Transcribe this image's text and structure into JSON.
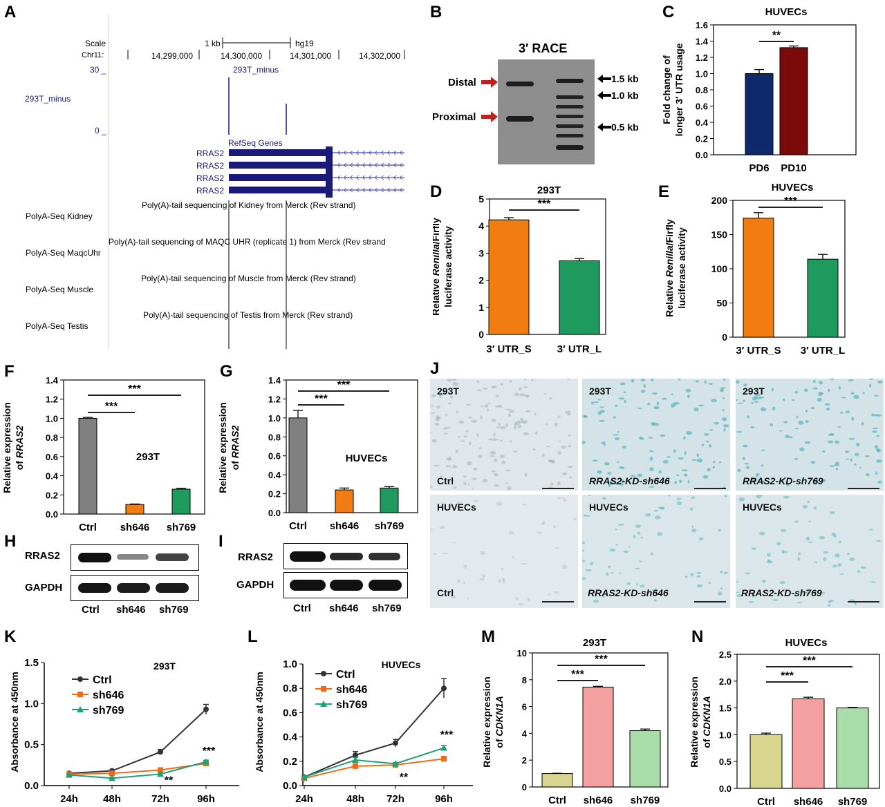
{
  "panels": {
    "A": "A",
    "B": "B",
    "C": "C",
    "D": "D",
    "E": "E",
    "F": "F",
    "G": "G",
    "H": "H",
    "I": "I",
    "J": "J",
    "K": "K",
    "L": "L",
    "M": "M",
    "N": "N"
  },
  "genome_browser": {
    "scale_label": "Scale",
    "scale_value": "1 kb",
    "assembly": "hg19",
    "chr_label": "Chr11:",
    "positions": [
      "14,299,000",
      "14,300,000",
      "14,301,000",
      "14,302,000"
    ],
    "track_max": "30 _",
    "track_min": "0 _",
    "track_name": "293T_minus",
    "track_title": "293T_minus",
    "refseq_title": "RefSeq Genes",
    "genes": [
      "RRAS2",
      "RRAS2",
      "RRAS2",
      "RRAS2"
    ],
    "polya_tracks": [
      {
        "name": "PolyA-Seq Kidney",
        "desc": "Poly(A)-tail sequencing of Kidney from Merck (Rev strand)"
      },
      {
        "name": "PolyA-Seq MaqcUhr",
        "desc": "Poly(A)-tail sequencing of MAQC UHR (replicate 1) from Merck (Rev strand"
      },
      {
        "name": "PolyA-Seq Muscle",
        "desc": "Poly(A)-tail sequencing of Muscle from Merck (Rev strand)"
      },
      {
        "name": "PolyA-Seq Testis",
        "desc": "Poly(A)-tail sequencing of Testis from Merck (Rev strand)"
      }
    ]
  },
  "race": {
    "title": "3′ RACE",
    "distal": "Distal",
    "proximal": "Proximal",
    "markers": [
      "1.5 kb",
      "1.0 kb",
      "0.5 kb"
    ],
    "arrow_color": "#c0201e"
  },
  "blots": {
    "H": {
      "rows": [
        "RRAS2",
        "GAPDH"
      ],
      "lanes": [
        "Ctrl",
        "sh646",
        "sh769"
      ],
      "rras2_intensity": [
        1.0,
        0.25,
        0.55
      ],
      "gapdh_intensity": [
        0.95,
        0.9,
        0.9
      ]
    },
    "I": {
      "rows": [
        "RRAS2",
        "GAPDH"
      ],
      "lanes": [
        "Ctrl",
        "sh646",
        "sh769"
      ],
      "rras2_intensity": [
        1.0,
        0.7,
        0.6
      ],
      "gapdh_intensity": [
        0.95,
        0.95,
        0.95
      ]
    }
  },
  "microscopy": {
    "top_cell": "293T",
    "bottom_cell": "HUVECs",
    "conditions": [
      "Ctrl",
      "RRAS2-KD-sh646",
      "RRAS2-KD-sh769"
    ]
  },
  "colors": {
    "navy": "#0f2a6b",
    "darkred": "#7d0a0a",
    "orange": "#f07c12",
    "green": "#1f9a5e",
    "gray": "#808080",
    "pink": "#f4a0a0",
    "lightgreen": "#a8dca8",
    "khaki": "#d8d68e",
    "line_ctrl": "#333333",
    "line_sh646": "#f06a14",
    "line_sh769": "#1ea07a"
  },
  "chart_data": [
    {
      "id": "C",
      "type": "bar",
      "title": "HUVECs",
      "ylabel": "Fold change of longer 3′ UTR usage",
      "categories": [
        "PD6",
        "PD10"
      ],
      "values": [
        1.0,
        1.32
      ],
      "errors": [
        0.05,
        0.02
      ],
      "ylim": [
        0,
        1.6
      ],
      "yticks": [
        "0.0",
        "0.2",
        "0.4",
        "0.6",
        "0.8",
        "1.0",
        "1.2",
        "1.4",
        "1.6"
      ],
      "bar_colors": [
        "#0f2a6b",
        "#7d0a0a"
      ],
      "sig": [
        {
          "from": 0,
          "to": 1,
          "label": "**"
        }
      ]
    },
    {
      "id": "D",
      "type": "bar",
      "title": "293T",
      "ylabel": "Relative Renilla/Firfly luciferase activity",
      "categories": [
        "3′ UTR_S",
        "3′ UTR_L"
      ],
      "values": [
        4.23,
        2.72
      ],
      "errors": [
        0.08,
        0.08
      ],
      "ylim": [
        0,
        5
      ],
      "yticks": [
        "0",
        "1",
        "2",
        "3",
        "4",
        "5"
      ],
      "bar_colors": [
        "#f07c12",
        "#1f9a5e"
      ],
      "sig": [
        {
          "from": 0,
          "to": 1,
          "label": "***"
        }
      ]
    },
    {
      "id": "E",
      "type": "bar",
      "title": "HUVECs",
      "ylabel": "Relative Renilla/Firfly luciferase activity",
      "categories": [
        "3′ UTR_S",
        "3′ UTR_L"
      ],
      "values": [
        174,
        114
      ],
      "errors": [
        8,
        7
      ],
      "ylim": [
        0,
        200
      ],
      "yticks": [
        "0",
        "50",
        "100",
        "150",
        "200"
      ],
      "bar_colors": [
        "#f07c12",
        "#1f9a5e"
      ],
      "sig": [
        {
          "from": 0,
          "to": 1,
          "label": "***"
        }
      ]
    },
    {
      "id": "F",
      "type": "bar",
      "title": "293T",
      "ylabel": "Relative expression of RRAS2",
      "categories": [
        "Ctrl",
        "sh646",
        "sh769"
      ],
      "values": [
        1.0,
        0.1,
        0.26
      ],
      "errors": [
        0.01,
        0.005,
        0.01
      ],
      "ylim": [
        0,
        1.4
      ],
      "yticks": [
        "0.0",
        "0.2",
        "0.4",
        "0.6",
        "0.8",
        "1.0",
        "1.2",
        "1.4"
      ],
      "bar_colors": [
        "#808080",
        "#f07c12",
        "#1f9a5e"
      ],
      "sig": [
        {
          "from": 0,
          "to": 1,
          "label": "***"
        },
        {
          "from": 0,
          "to": 2,
          "label": "***"
        }
      ]
    },
    {
      "id": "G",
      "type": "bar",
      "title": "HUVECs",
      "ylabel": "Relative expression of RRAS2",
      "categories": [
        "Ctrl",
        "sh646",
        "sh769"
      ],
      "values": [
        1.0,
        0.24,
        0.26
      ],
      "errors": [
        0.08,
        0.02,
        0.015
      ],
      "ylim": [
        0,
        1.4
      ],
      "yticks": [
        "0.0",
        "0.2",
        "0.4",
        "0.6",
        "0.8",
        "1.0",
        "1.2",
        "1.4"
      ],
      "bar_colors": [
        "#808080",
        "#f07c12",
        "#1f9a5e"
      ],
      "sig": [
        {
          "from": 0,
          "to": 1,
          "label": "***"
        },
        {
          "from": 0,
          "to": 2,
          "label": "***"
        }
      ]
    },
    {
      "id": "K",
      "type": "line",
      "title": "293T",
      "ylabel": "Absorbance at 450nm",
      "x": [
        "24h",
        "48h",
        "72h",
        "96h"
      ],
      "ylim": [
        0,
        1.5
      ],
      "yticks": [
        "0.0",
        "0.5",
        "1.0",
        "1.5"
      ],
      "series": [
        {
          "name": "Ctrl",
          "values": [
            0.15,
            0.18,
            0.41,
            0.93
          ],
          "errors": [
            0.01,
            0.01,
            0.03,
            0.06
          ],
          "color": "#333333",
          "marker": "circle"
        },
        {
          "name": "sh646",
          "values": [
            0.14,
            0.15,
            0.19,
            0.27
          ],
          "errors": [
            0.01,
            0.01,
            0.02,
            0.02
          ],
          "color": "#f06a14",
          "marker": "square"
        },
        {
          "name": "sh769",
          "values": [
            0.13,
            0.09,
            0.14,
            0.29
          ],
          "errors": [
            0.01,
            0.01,
            0.01,
            0.02
          ],
          "color": "#1ea07a",
          "marker": "triangle"
        }
      ],
      "annotations": [
        {
          "x": 2,
          "y": 0.02,
          "label": "**"
        },
        {
          "x": 3,
          "y": 0.38,
          "label": "***"
        }
      ]
    },
    {
      "id": "L",
      "type": "line",
      "title": "HUVECs",
      "ylabel": "Absorbance at 450nm",
      "x": [
        "24h",
        "48h",
        "72h",
        "96h"
      ],
      "ylim": [
        0,
        1.0
      ],
      "yticks": [
        "0.0",
        "0.2",
        "0.4",
        "0.6",
        "0.8",
        "1.0"
      ],
      "series": [
        {
          "name": "Ctrl",
          "values": [
            0.07,
            0.25,
            0.35,
            0.8
          ],
          "errors": [
            0.01,
            0.03,
            0.03,
            0.08
          ],
          "color": "#333333",
          "marker": "circle"
        },
        {
          "name": "sh646",
          "values": [
            0.06,
            0.16,
            0.17,
            0.22
          ],
          "errors": [
            0.01,
            0.02,
            0.01,
            0.02
          ],
          "color": "#f06a14",
          "marker": "square"
        },
        {
          "name": "sh769",
          "values": [
            0.07,
            0.21,
            0.18,
            0.31
          ],
          "errors": [
            0.01,
            0.02,
            0.01,
            0.02
          ],
          "color": "#1ea07a",
          "marker": "triangle"
        }
      ],
      "annotations": [
        {
          "x": 2,
          "y": 0.04,
          "label": "**"
        },
        {
          "x": 3,
          "y": 0.39,
          "label": "***"
        }
      ]
    },
    {
      "id": "M",
      "type": "bar",
      "title": "293T",
      "ylabel": "Relative expression of CDKN1A",
      "categories": [
        "Ctrl",
        "sh646",
        "sh769"
      ],
      "values": [
        1.0,
        7.45,
        4.2
      ],
      "errors": [
        0.02,
        0.06,
        0.12
      ],
      "ylim": [
        0,
        10
      ],
      "yticks": [
        "0",
        "2",
        "4",
        "6",
        "8",
        "10"
      ],
      "bar_colors": [
        "#d8d68e",
        "#f4a0a0",
        "#a8dca8"
      ],
      "sig": [
        {
          "from": 0,
          "to": 1,
          "label": "***"
        },
        {
          "from": 0,
          "to": 2,
          "label": "***"
        }
      ]
    },
    {
      "id": "N",
      "type": "bar",
      "title": "HUVECs",
      "ylabel": "Relative expression of CDKN1A",
      "categories": [
        "Ctrl",
        "sh646",
        "sh769"
      ],
      "values": [
        1.0,
        1.67,
        1.5
      ],
      "errors": [
        0.03,
        0.03,
        0.01
      ],
      "ylim": [
        0,
        2.5
      ],
      "yticks": [
        "0.0",
        "0.5",
        "1.0",
        "1.5",
        "2.0",
        "2.5"
      ],
      "bar_colors": [
        "#d8d68e",
        "#f4a0a0",
        "#a8dca8"
      ],
      "sig": [
        {
          "from": 0,
          "to": 1,
          "label": "***"
        },
        {
          "from": 0,
          "to": 2,
          "label": "***"
        }
      ]
    }
  ]
}
